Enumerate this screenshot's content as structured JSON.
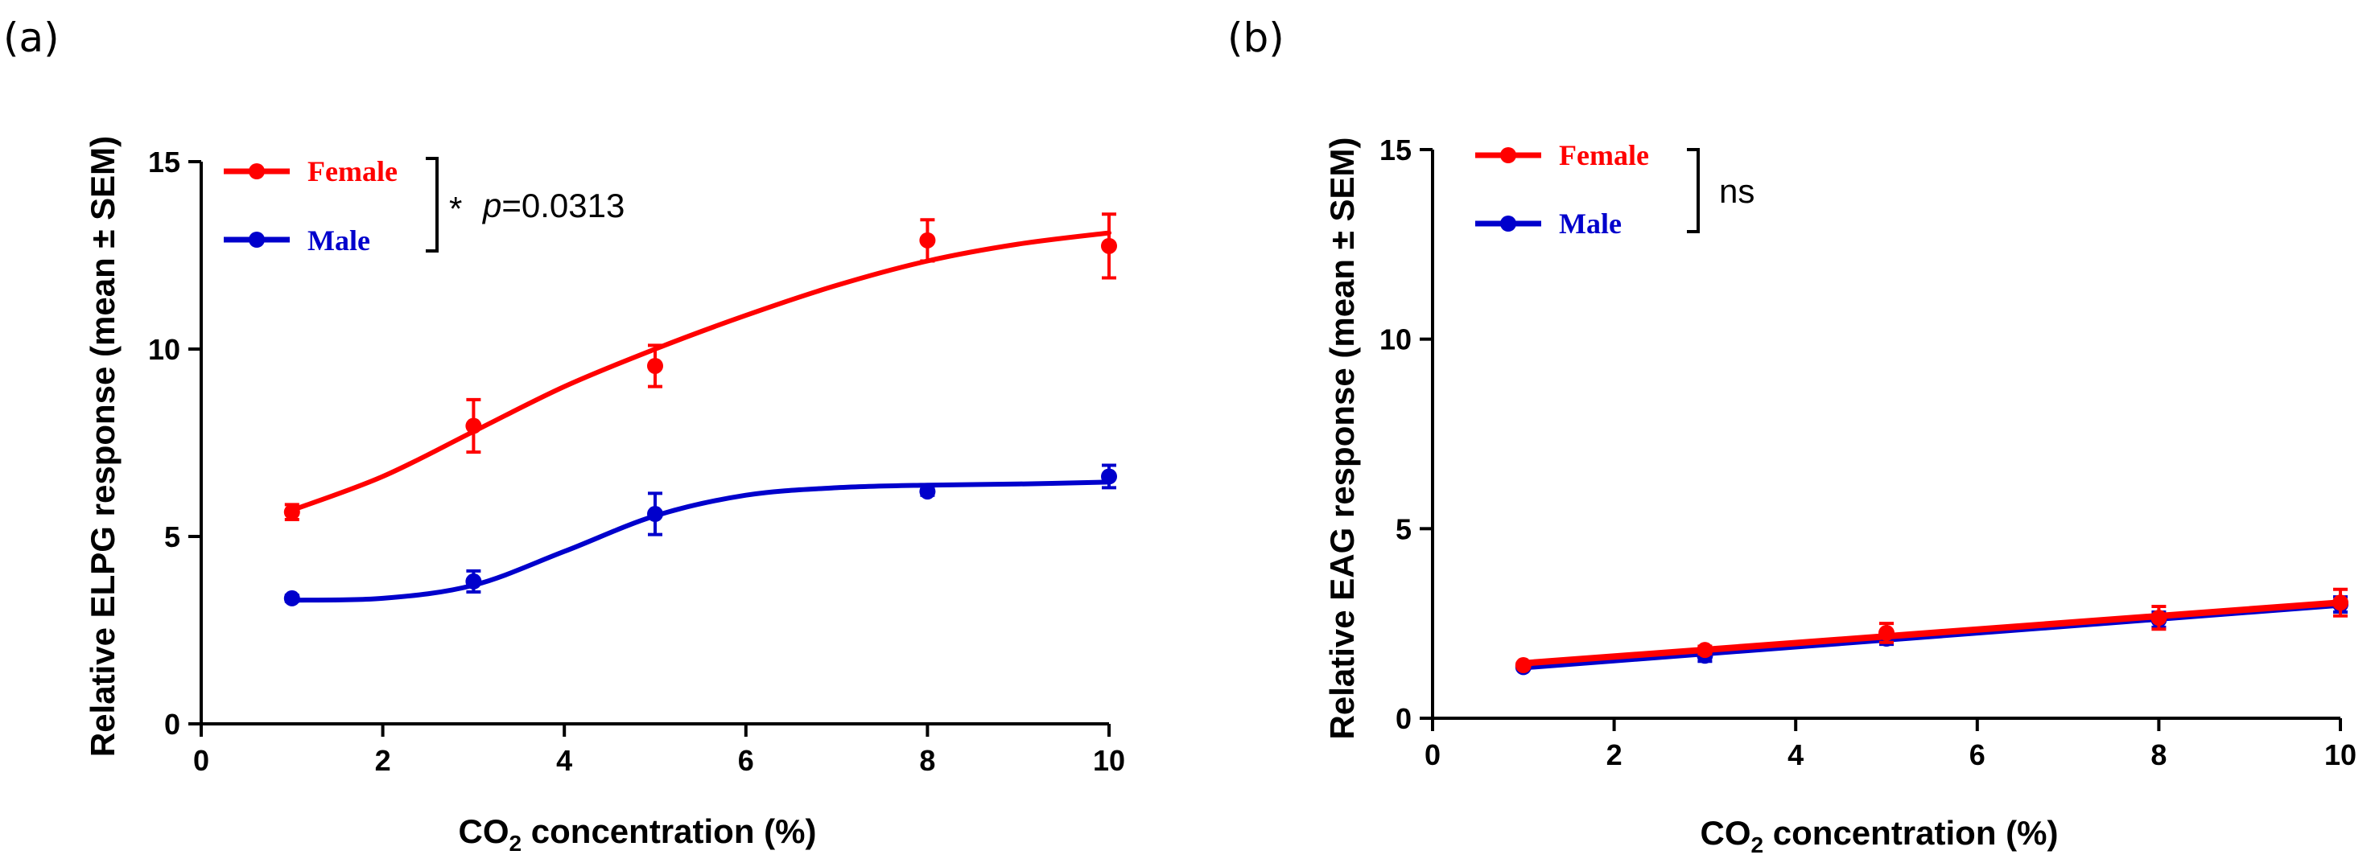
{
  "chart_data": [
    {
      "panel": "(a)",
      "type": "line",
      "xlabel_main": "CO",
      "xlabel_sub": "2",
      "xlabel_rest": " concentration (%)",
      "ylabel": "Relative ELPG response (mean ± SEM)",
      "xlim": [
        0,
        10
      ],
      "ylim": [
        0,
        15
      ],
      "xticks": [
        "0",
        "2",
        "4",
        "6",
        "8",
        "10"
      ],
      "yticks": [
        "0",
        "5",
        "10",
        "15"
      ],
      "x": [
        1,
        3,
        5,
        8,
        10
      ],
      "series": [
        {
          "name": "Female",
          "color": "#ff0000",
          "values": [
            5.65,
            7.95,
            9.55,
            12.9,
            12.75
          ],
          "sem": [
            0.2,
            0.7,
            0.55,
            0.55,
            0.85
          ],
          "fit": [
            [
              1,
              5.7
            ],
            [
              2,
              6.6
            ],
            [
              3,
              7.8
            ],
            [
              4,
              9.0
            ],
            [
              5,
              10.0
            ],
            [
              6,
              10.9
            ],
            [
              7,
              11.7
            ],
            [
              8,
              12.35
            ],
            [
              9,
              12.8
            ],
            [
              10,
              13.1
            ]
          ]
        },
        {
          "name": "Male",
          "color": "#0000cc",
          "values": [
            3.35,
            3.8,
            5.6,
            6.2,
            6.6
          ],
          "sem": [
            0.08,
            0.28,
            0.55,
            0.1,
            0.3
          ],
          "fit": [
            [
              1,
              3.3
            ],
            [
              2,
              3.35
            ],
            [
              3,
              3.7
            ],
            [
              4,
              4.6
            ],
            [
              5,
              5.55
            ],
            [
              6,
              6.1
            ],
            [
              7,
              6.3
            ],
            [
              8,
              6.37
            ],
            [
              9,
              6.4
            ],
            [
              10,
              6.45
            ]
          ]
        }
      ],
      "annotation": {
        "star": "*",
        "p_italic": "p",
        "p_rest": "=0.0313"
      }
    },
    {
      "panel": "(b)",
      "type": "line",
      "xlabel_main": "CO",
      "xlabel_sub": "2",
      "xlabel_rest": " concentration (%)",
      "ylabel": "Relative EAG response (mean ± SEM)",
      "xlim": [
        0,
        10
      ],
      "ylim": [
        0,
        15
      ],
      "xticks": [
        "0",
        "2",
        "4",
        "6",
        "8",
        "10"
      ],
      "yticks": [
        "0",
        "5",
        "10",
        "15"
      ],
      "x": [
        1,
        3,
        5,
        8,
        10
      ],
      "series": [
        {
          "name": "Female",
          "color": "#ff0000",
          "values": [
            1.4,
            1.8,
            2.25,
            2.65,
            3.05
          ],
          "sem": [
            0.05,
            0.1,
            0.25,
            0.3,
            0.35
          ],
          "fit": [
            [
              1,
              1.45
            ],
            [
              10,
              3.05
            ]
          ]
        },
        {
          "name": "Male",
          "color": "#0000cc",
          "values": [
            1.35,
            1.65,
            2.1,
            2.6,
            3.0
          ],
          "sem": [
            0.05,
            0.15,
            0.15,
            0.2,
            0.2
          ],
          "fit": [
            [
              1,
              1.35
            ],
            [
              10,
              3.0
            ]
          ]
        }
      ],
      "annotation": {
        "text": "ns"
      }
    }
  ]
}
